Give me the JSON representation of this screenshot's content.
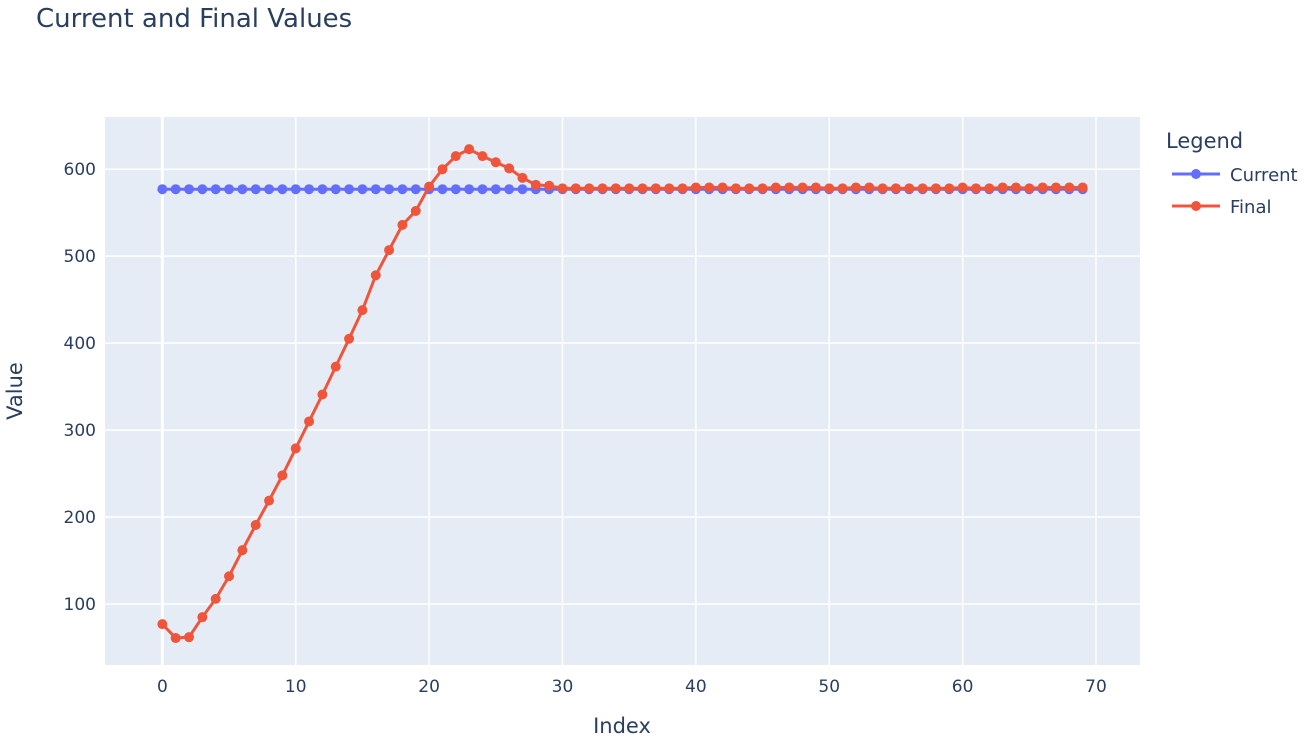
{
  "chart_data": {
    "type": "line",
    "title": "Current and Final Values",
    "xlabel": "Index",
    "ylabel": "Value",
    "xlim": [
      -4.3,
      73.3
    ],
    "ylim": [
      30,
      660
    ],
    "xticks": [
      0,
      10,
      20,
      30,
      40,
      50,
      60,
      70
    ],
    "yticks": [
      100,
      200,
      300,
      400,
      500,
      600
    ],
    "grid": true,
    "legend": {
      "title": "Legend",
      "position": "right"
    },
    "x": [
      0,
      1,
      2,
      3,
      4,
      5,
      6,
      7,
      8,
      9,
      10,
      11,
      12,
      13,
      14,
      15,
      16,
      17,
      18,
      19,
      20,
      21,
      22,
      23,
      24,
      25,
      26,
      27,
      28,
      29,
      30,
      31,
      32,
      33,
      34,
      35,
      36,
      37,
      38,
      39,
      40,
      41,
      42,
      43,
      44,
      45,
      46,
      47,
      48,
      49,
      50,
      51,
      52,
      53,
      54,
      55,
      56,
      57,
      58,
      59,
      60,
      61,
      62,
      63,
      64,
      65,
      66,
      67,
      68,
      69
    ],
    "series": [
      {
        "name": "Current",
        "color": "#636efa",
        "values": [
          577,
          577,
          577,
          577,
          577,
          577,
          577,
          577,
          577,
          577,
          577,
          577,
          577,
          577,
          577,
          577,
          577,
          577,
          577,
          577,
          577,
          577,
          577,
          577,
          577,
          577,
          577,
          577,
          577,
          577,
          577,
          577,
          577,
          577,
          577,
          577,
          577,
          577,
          577,
          577,
          577,
          577,
          577,
          577,
          577,
          577,
          577,
          577,
          577,
          577,
          577,
          577,
          577,
          577,
          577,
          577,
          577,
          577,
          577,
          577,
          577,
          577,
          577,
          577,
          577,
          577,
          577,
          577,
          577,
          577
        ]
      },
      {
        "name": "Final",
        "color": "#ef553b",
        "values": [
          77,
          61,
          62,
          85,
          106,
          132,
          162,
          191,
          219,
          248,
          279,
          310,
          341,
          373,
          405,
          438,
          478,
          507,
          536,
          552,
          580,
          600,
          615,
          623,
          615,
          608,
          601,
          590,
          582,
          581,
          578,
          578,
          578,
          578,
          578,
          578,
          578,
          578,
          578,
          578,
          579,
          579,
          579,
          578,
          578,
          578,
          579,
          579,
          579,
          579,
          578,
          578,
          579,
          579,
          578,
          578,
          578,
          578,
          578,
          578,
          579,
          578,
          578,
          579,
          579,
          578,
          579,
          579,
          579,
          579
        ]
      }
    ]
  }
}
